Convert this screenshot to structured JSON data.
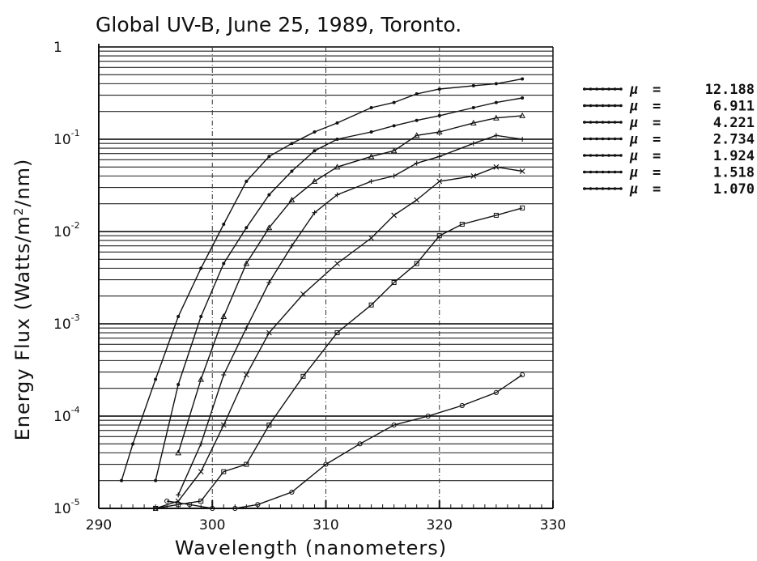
{
  "chart_data": {
    "type": "line",
    "title": "Global UV-B, June 25, 1989, Toronto.",
    "xlabel": "Wavelength (nanometers)",
    "ylabel": "Energy Flux (Watts/m²/nm)",
    "ylabel_parts": {
      "main": "Energy Flux (Watts/m",
      "sup": "2",
      "tail": "/nm)"
    },
    "xlim": [
      290,
      330
    ],
    "ylim": [
      1e-05,
      1
    ],
    "yscale": "log",
    "grid": true,
    "legend_position": "right",
    "x_ticks": [
      290,
      300,
      310,
      320,
      330
    ],
    "x_tick_labels": [
      "290",
      "300",
      "310",
      "320",
      "330"
    ],
    "y_ticks": [
      {
        "value": 1,
        "base": "1",
        "exp": ""
      },
      {
        "value": 0.1,
        "base": "10",
        "exp": "-1"
      },
      {
        "value": 0.01,
        "base": "10",
        "exp": "-2"
      },
      {
        "value": 0.001,
        "base": "10",
        "exp": "-3"
      },
      {
        "value": 0.0001,
        "base": "10",
        "exp": "-4"
      },
      {
        "value": 1e-05,
        "base": "10",
        "exp": "-5"
      }
    ],
    "series": [
      {
        "name": "μ = 12.188",
        "label_mu": "μ",
        "label_value": "12.188",
        "x": [
          327.3,
          325,
          322,
          319,
          316,
          313,
          310,
          307,
          304,
          302,
          300,
          298,
          296
        ],
        "y": [
          0.00028,
          0.00018,
          0.00013,
          0.0001,
          8e-05,
          5e-05,
          3e-05,
          1.5e-05,
          1.1e-05,
          1e-05,
          1e-05,
          1.1e-05,
          1.2e-05
        ]
      },
      {
        "name": "μ = 6.911",
        "label_mu": "μ",
        "label_value": "6.911",
        "x": [
          327.3,
          325,
          322,
          320,
          318,
          316,
          314,
          311,
          308,
          305,
          303,
          301,
          299,
          297,
          295
        ],
        "y": [
          0.018,
          0.015,
          0.012,
          0.009,
          0.0045,
          0.0028,
          0.0016,
          0.0008,
          0.00027,
          8e-05,
          3e-05,
          2.5e-05,
          1.2e-05,
          1.1e-05,
          1e-05
        ]
      },
      {
        "name": "μ = 4.221",
        "label_mu": "μ",
        "label_value": "4.221",
        "x": [
          327.3,
          325,
          323,
          320,
          318,
          316,
          314,
          311,
          308,
          305,
          303,
          301,
          299,
          297,
          295
        ],
        "y": [
          0.045,
          0.05,
          0.04,
          0.035,
          0.022,
          0.015,
          0.0085,
          0.0045,
          0.0021,
          0.0008,
          0.00028,
          8e-05,
          2.5e-05,
          1.2e-05,
          1e-05
        ]
      },
      {
        "name": "μ = 2.734",
        "label_mu": "μ",
        "label_value": "2.734",
        "x": [
          327.3,
          325,
          323,
          320,
          318,
          316,
          314,
          311,
          309,
          307,
          305,
          303,
          301,
          299,
          297
        ],
        "y": [
          0.1,
          0.11,
          0.09,
          0.065,
          0.055,
          0.04,
          0.035,
          0.025,
          0.016,
          0.007,
          0.0028,
          0.0009,
          0.00028,
          5e-05,
          1.4e-05
        ]
      },
      {
        "name": "μ = 1.924",
        "label_mu": "μ",
        "label_value": "1.924",
        "x": [
          327.3,
          325,
          323,
          320,
          318,
          316,
          314,
          311,
          309,
          307,
          305,
          303,
          301,
          299,
          297
        ],
        "y": [
          0.18,
          0.17,
          0.15,
          0.12,
          0.11,
          0.075,
          0.065,
          0.05,
          0.035,
          0.022,
          0.011,
          0.0045,
          0.0012,
          0.00025,
          4e-05
        ]
      },
      {
        "name": "μ = 1.518",
        "label_mu": "μ",
        "label_value": "1.518",
        "x": [
          327.3,
          325,
          323,
          320,
          318,
          316,
          314,
          311,
          309,
          307,
          305,
          303,
          301,
          299,
          297,
          295
        ],
        "y": [
          0.28,
          0.25,
          0.22,
          0.18,
          0.16,
          0.14,
          0.12,
          0.1,
          0.075,
          0.045,
          0.025,
          0.011,
          0.0045,
          0.0012,
          0.00022,
          2e-05
        ]
      },
      {
        "name": "μ = 1.070",
        "label_mu": "μ",
        "label_value": "1.070",
        "x": [
          327.3,
          325,
          323,
          320,
          318,
          316,
          314,
          311,
          309,
          307,
          305,
          303,
          301,
          299,
          297,
          295,
          293,
          292
        ],
        "y": [
          0.45,
          0.4,
          0.38,
          0.35,
          0.31,
          0.25,
          0.22,
          0.15,
          0.12,
          0.09,
          0.065,
          0.035,
          0.012,
          0.004,
          0.0012,
          0.00025,
          5e-05,
          2e-05
        ]
      }
    ]
  }
}
